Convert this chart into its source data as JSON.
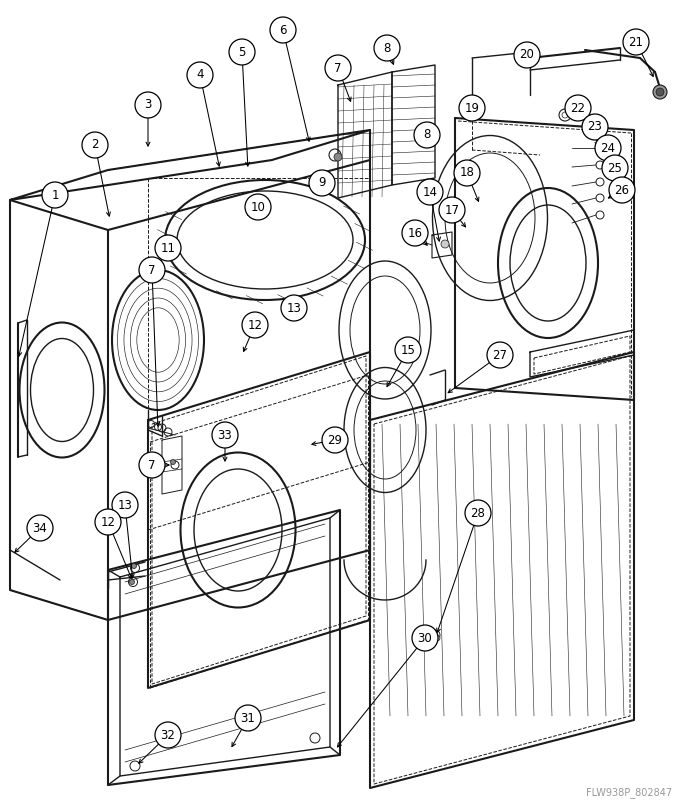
{
  "watermark": "FLW938P_802847",
  "bg_color": "#ffffff",
  "lc": "#1a1a1a",
  "fig_width": 6.8,
  "fig_height": 8.05,
  "dpi": 100,
  "label_positions": [
    [
      "1",
      55,
      195
    ],
    [
      "2",
      95,
      145
    ],
    [
      "3",
      148,
      105
    ],
    [
      "4",
      200,
      75
    ],
    [
      "5",
      242,
      52
    ],
    [
      "6",
      283,
      30
    ],
    [
      "7",
      338,
      68
    ],
    [
      "8",
      387,
      48
    ],
    [
      "8",
      427,
      135
    ],
    [
      "9",
      322,
      183
    ],
    [
      "10",
      258,
      207
    ],
    [
      "11",
      168,
      248
    ],
    [
      "7",
      152,
      270
    ],
    [
      "12",
      255,
      325
    ],
    [
      "13",
      294,
      308
    ],
    [
      "14",
      430,
      192
    ],
    [
      "15",
      408,
      350
    ],
    [
      "16",
      415,
      233
    ],
    [
      "17",
      452,
      210
    ],
    [
      "18",
      467,
      173
    ],
    [
      "19",
      472,
      108
    ],
    [
      "20",
      527,
      55
    ],
    [
      "21",
      636,
      42
    ],
    [
      "22",
      578,
      108
    ],
    [
      "23",
      595,
      127
    ],
    [
      "24",
      608,
      148
    ],
    [
      "25",
      615,
      168
    ],
    [
      "26",
      622,
      190
    ],
    [
      "27",
      500,
      355
    ],
    [
      "28",
      478,
      513
    ],
    [
      "29",
      335,
      440
    ],
    [
      "30",
      425,
      638
    ],
    [
      "31",
      248,
      718
    ],
    [
      "32",
      168,
      735
    ],
    [
      "33",
      225,
      435
    ],
    [
      "34",
      40,
      528
    ],
    [
      "7",
      152,
      465
    ],
    [
      "13",
      125,
      505
    ],
    [
      "12",
      108,
      522
    ]
  ]
}
